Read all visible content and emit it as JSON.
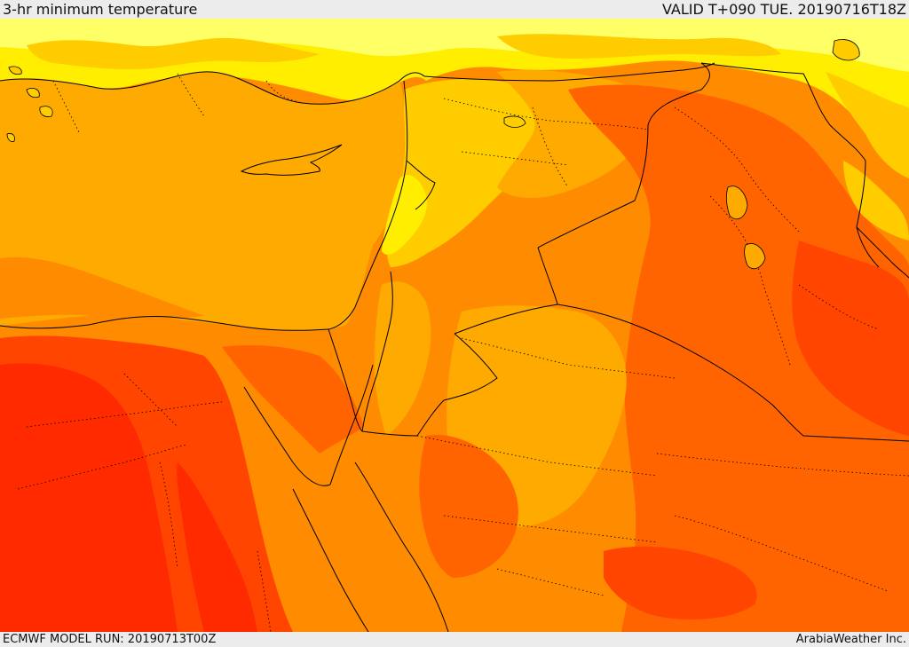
{
  "header": {
    "title": "3-hr minimum temperature",
    "valid_time": "VALID T+090 TUE. 20190716T18Z"
  },
  "footer": {
    "model_run": "ECMWF MODEL RUN: 20190713T00Z",
    "credit": "ArabiaWeather Inc."
  },
  "map": {
    "variable": "3-hr minimum temperature",
    "palette": {
      "light_yellow": "#ffff66",
      "yellow": "#ffee00",
      "yellow_orange": "#ffcc00",
      "light_orange": "#ffaa00",
      "orange": "#ff8c00",
      "dark_orange": "#ff6400",
      "red_orange": "#ff4500",
      "red": "#ff2a00"
    },
    "border_color": "#000000"
  }
}
